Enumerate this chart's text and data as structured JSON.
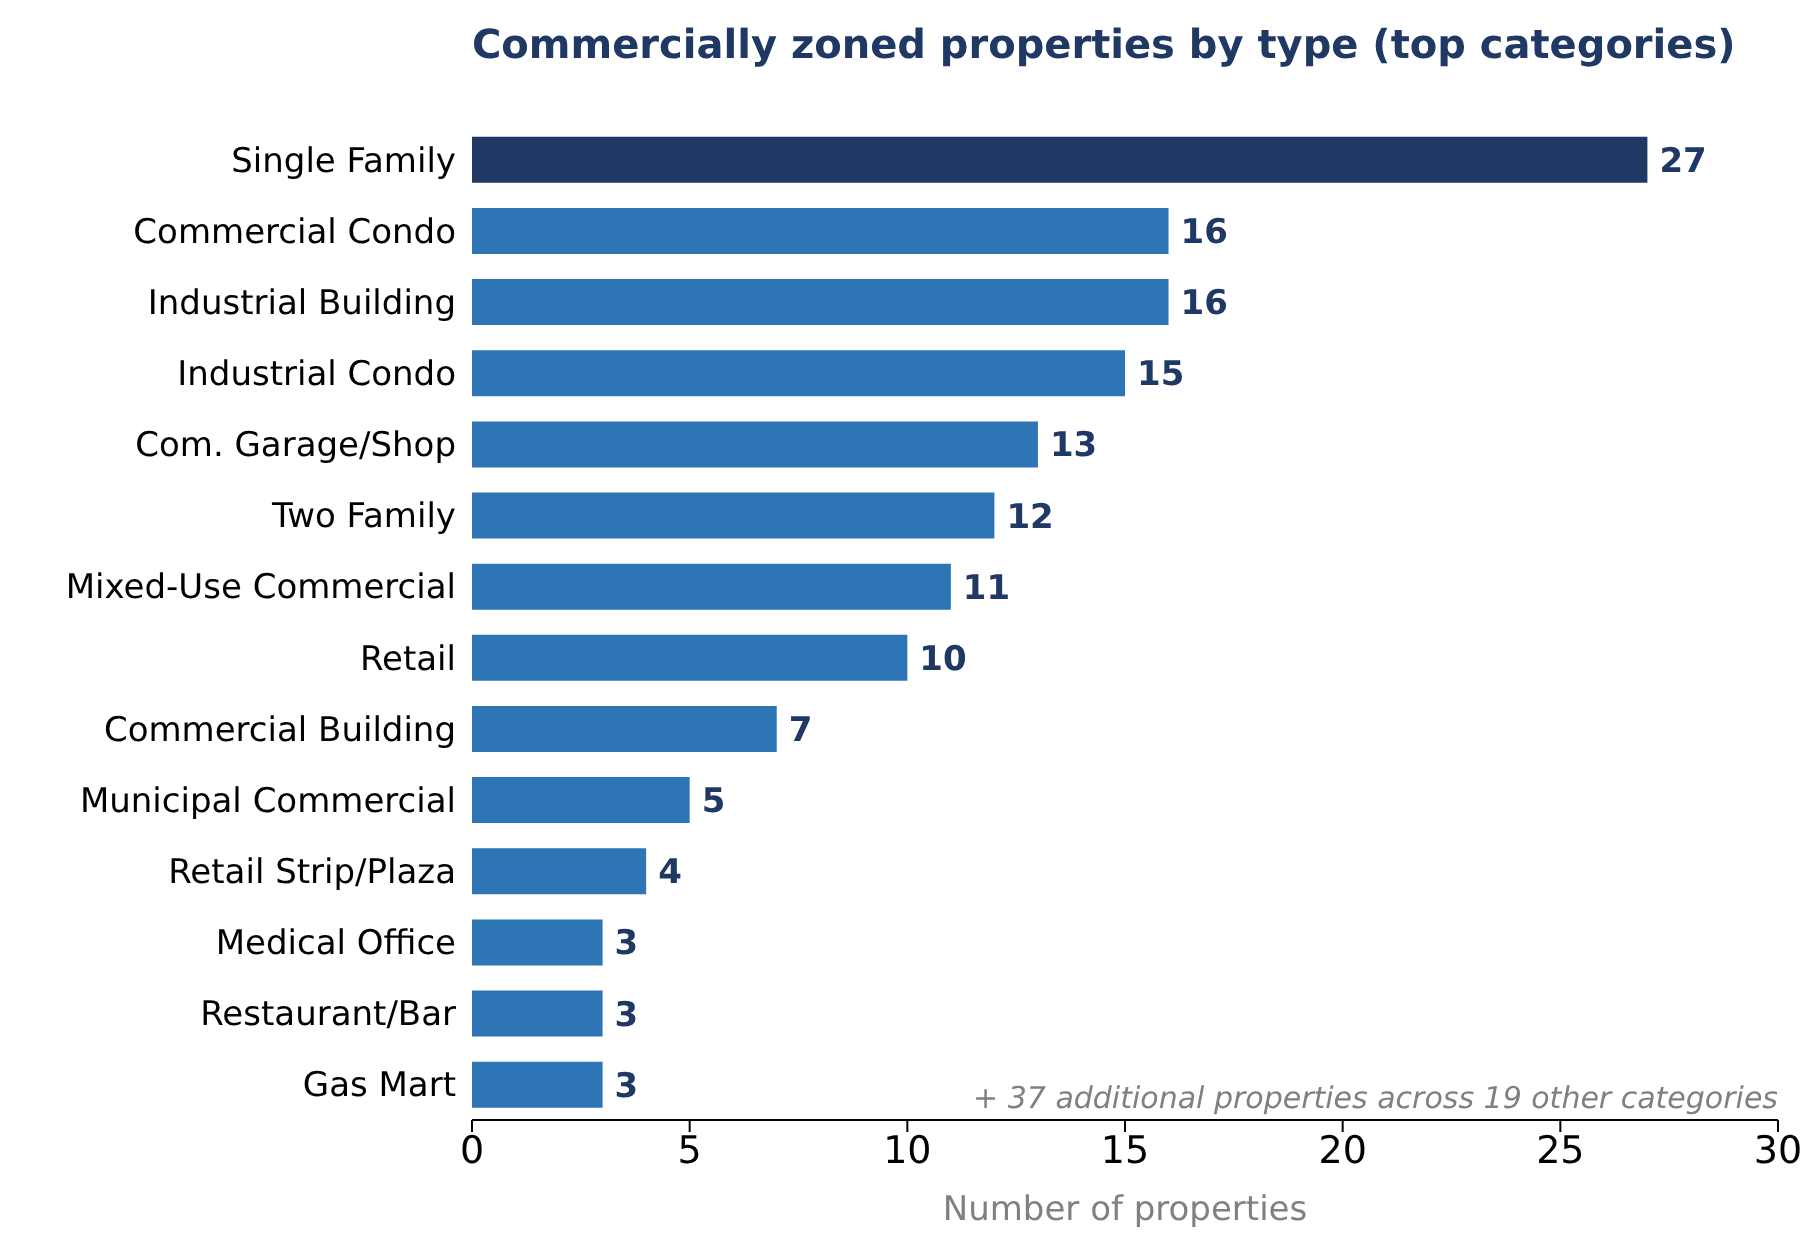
{
  "chart_data": {
    "type": "bar",
    "orientation": "horizontal",
    "title": "Commercially zoned properties by type (top categories)",
    "xlabel": "Number of properties",
    "categories": [
      "Single Family",
      "Commercial Condo",
      "Industrial Building",
      "Industrial Condo",
      "Com. Garage/Shop",
      "Two Family",
      "Mixed-Use Commercial",
      "Retail",
      "Commercial Building",
      "Municipal Commercial",
      "Retail Strip/Plaza",
      "Medical Office",
      "Restaurant/Bar",
      "Gas Mart"
    ],
    "values": [
      27,
      16,
      16,
      15,
      13,
      12,
      11,
      10,
      7,
      5,
      4,
      3,
      3,
      3
    ],
    "colors": [
      "#1f3864",
      "#2e75b6",
      "#2e75b6",
      "#2e75b6",
      "#2e75b6",
      "#2e75b6",
      "#2e75b6",
      "#2e75b6",
      "#2e75b6",
      "#2e75b6",
      "#2e75b6",
      "#2e75b6",
      "#2e75b6",
      "#2e75b6"
    ],
    "xlim": [
      0,
      30
    ],
    "xticks": [
      0,
      5,
      10,
      15,
      20,
      25,
      30
    ],
    "grid": false,
    "legend": false,
    "data_labels": true,
    "annotations": [
      "+ 37 additional properties across 19 other categories"
    ]
  }
}
